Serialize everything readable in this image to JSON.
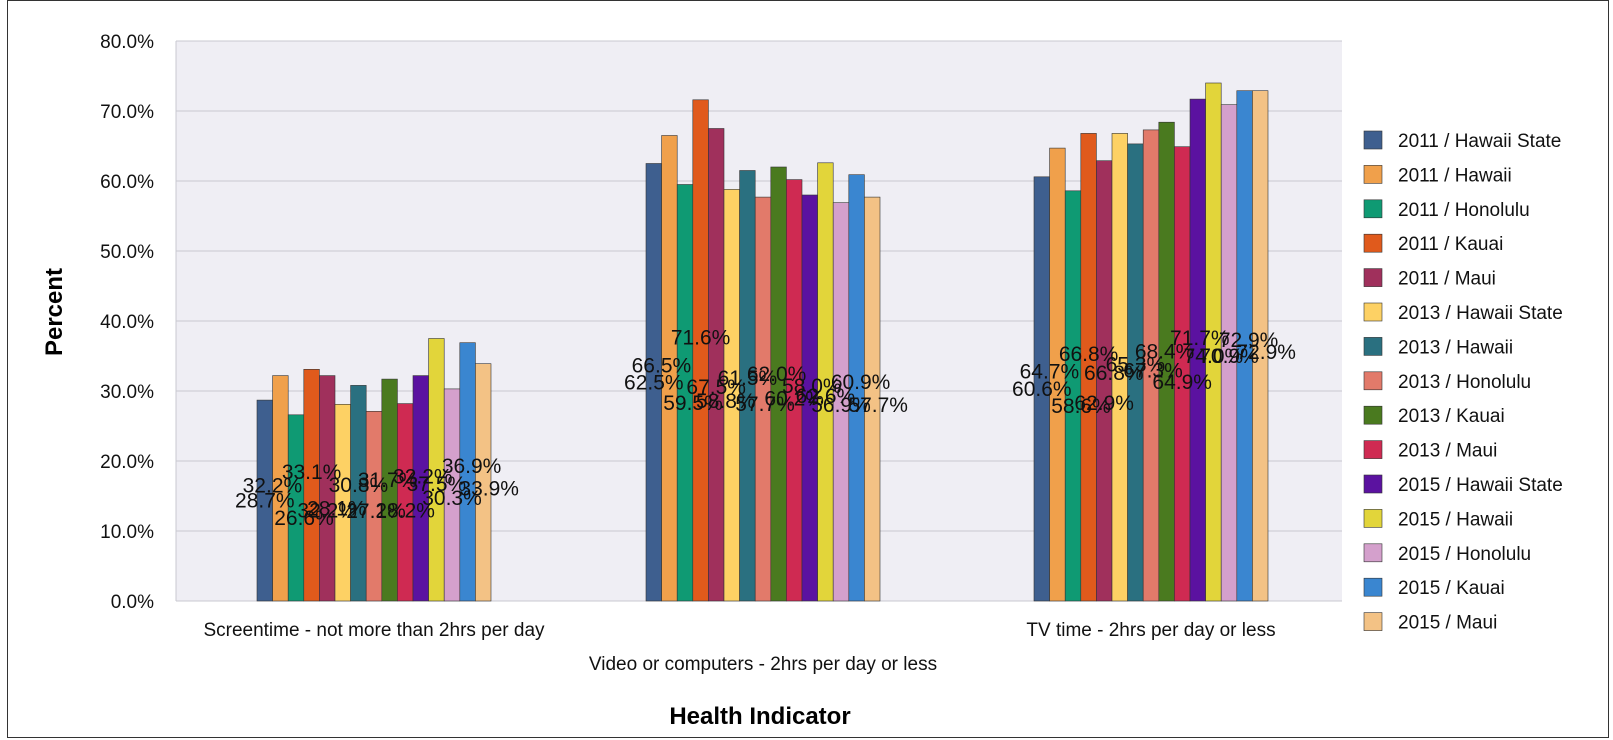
{
  "chart_data": {
    "type": "bar",
    "title": "",
    "xlabel": "Health Indicator",
    "ylabel": "Percent",
    "ylim": [
      0,
      80
    ],
    "yticks": [
      "0.0%",
      "10.0%",
      "20.0%",
      "30.0%",
      "40.0%",
      "50.0%",
      "60.0%",
      "70.0%",
      "80.0%"
    ],
    "grid": true,
    "legend_position": "right",
    "categories": [
      "Screentime - not more than 2hrs per day",
      "Video or computers - 2hrs per day or less",
      "TV time - 2hrs per day or less"
    ],
    "series": [
      {
        "name": "2011 / Hawaii State",
        "color": "#3e5f8f",
        "values": [
          28.7,
          62.5,
          60.6
        ],
        "labels": [
          "28.7%",
          "62.5%",
          "60.6%"
        ]
      },
      {
        "name": "2011 / Hawaii",
        "color": "#f0a04b",
        "values": [
          32.2,
          66.5,
          64.7
        ],
        "labels": [
          "32.2%",
          "66.5%",
          "64.7%"
        ]
      },
      {
        "name": "2011 / Honolulu",
        "color": "#0f9a73",
        "values": [
          26.6,
          59.5,
          58.6
        ],
        "labels": [
          "26.6%",
          "59.5%",
          "58.6%"
        ]
      },
      {
        "name": "2011 / Kauai",
        "color": "#e05a1c",
        "values": [
          33.1,
          71.6,
          66.8
        ],
        "labels": [
          "33.1%",
          "71.6%",
          "66.8%"
        ]
      },
      {
        "name": "2011 / Maui",
        "color": "#a0305c",
        "values": [
          32.2,
          67.5,
          62.9
        ],
        "labels": [
          "32.2%",
          "67.5%",
          "62.9%"
        ]
      },
      {
        "name": "2013 / Hawaii State",
        "color": "#fdd164",
        "values": [
          28.1,
          58.8,
          66.8
        ],
        "labels": [
          "28.1%",
          "58.8%",
          "66.8%"
        ]
      },
      {
        "name": "2013 / Hawaii",
        "color": "#2a7080",
        "values": [
          30.8,
          61.5,
          65.3
        ],
        "labels": [
          "30.8%",
          "61.5%",
          "65.3%"
        ]
      },
      {
        "name": "2013 / Honolulu",
        "color": "#e27a6a",
        "values": [
          27.1,
          57.7,
          67.3
        ],
        "labels": [
          "27.1%",
          "57.7%",
          "67.3%"
        ]
      },
      {
        "name": "2013 / Kauai",
        "color": "#4a7a1f",
        "values": [
          31.7,
          62.0,
          68.4
        ],
        "labels": [
          "31.7%",
          "62.0%",
          "68.4%"
        ]
      },
      {
        "name": "2013 / Maui",
        "color": "#cf2a52",
        "values": [
          28.2,
          60.2,
          64.9
        ],
        "labels": [
          "28.2%",
          "60.2%",
          "64.9%"
        ]
      },
      {
        "name": "2015 / Hawaii State",
        "color": "#5b12a0",
        "values": [
          32.2,
          58.0,
          71.7
        ],
        "labels": [
          "32.2%",
          "58.0%",
          "71.7%"
        ]
      },
      {
        "name": "2015 / Hawaii",
        "color": "#e2d53a",
        "values": [
          37.5,
          62.6,
          74.0
        ],
        "labels": [
          "37.5%",
          "62.6%",
          "74.0%"
        ]
      },
      {
        "name": "2015 / Honolulu",
        "color": "#d4a0cc",
        "values": [
          30.3,
          56.9,
          70.9
        ],
        "labels": [
          "30.3%",
          "56.9%",
          "70.9%"
        ]
      },
      {
        "name": "2015 / Kauai",
        "color": "#3a86d0",
        "values": [
          36.9,
          60.9,
          72.9
        ],
        "labels": [
          "36.9%",
          "60.9%",
          "72.9%"
        ]
      },
      {
        "name": "2015 / Maui",
        "color": "#f3c285",
        "values": [
          33.9,
          57.7,
          72.9
        ],
        "labels": [
          "33.9%",
          "57.7%",
          "72.9%"
        ]
      }
    ]
  }
}
